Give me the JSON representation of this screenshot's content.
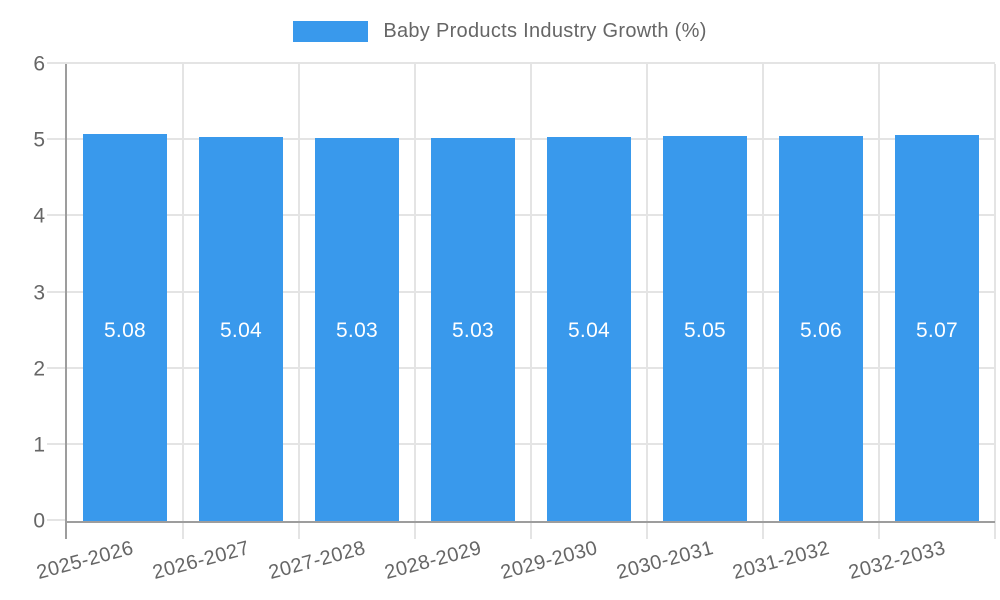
{
  "legend": {
    "label": "Baby Products Industry Growth (%)"
  },
  "colors": {
    "bar": "#3999EC",
    "grid": "#E4E4E4",
    "axis": "#9D9D9D",
    "tick_text": "#666666",
    "value_label": "#FFFFFF"
  },
  "chart_data": {
    "type": "bar",
    "title": "Baby Products Industry Growth (%)",
    "categories": [
      "2025-2026",
      "2026-2027",
      "2027-2028",
      "2028-2029",
      "2029-2030",
      "2030-2031",
      "2031-2032",
      "2032-2033"
    ],
    "values": [
      5.08,
      5.04,
      5.03,
      5.03,
      5.04,
      5.05,
      5.06,
      5.07
    ],
    "value_labels": [
      "5.08",
      "5.04",
      "5.03",
      "5.03",
      "5.04",
      "5.05",
      "5.06",
      "5.07"
    ],
    "xlabel": "",
    "ylabel": "",
    "ylim": [
      0,
      6
    ],
    "yticks": [
      0,
      1,
      2,
      3,
      4,
      5,
      6
    ],
    "grid": true,
    "legend_position": "top-center",
    "bar_color": "#3999EC",
    "value_label_color": "#FFFFFF"
  }
}
